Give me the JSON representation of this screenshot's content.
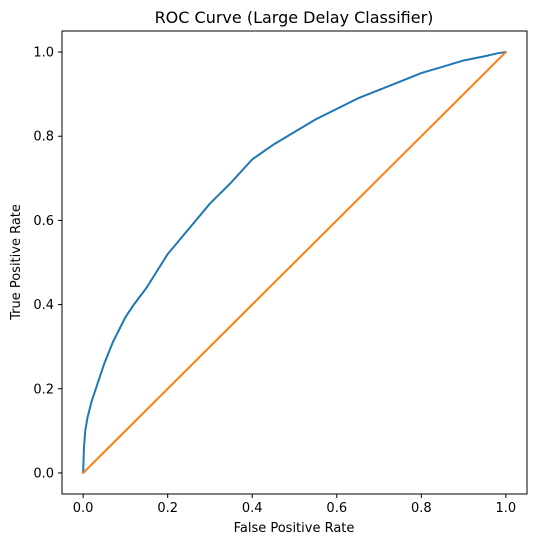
{
  "chart_data": {
    "type": "line",
    "title": "ROC Curve (Large Delay Classifier)",
    "xlabel": "False Positive Rate",
    "ylabel": "True Positive Rate",
    "xlim": [
      -0.05,
      1.05
    ],
    "ylim": [
      -0.05,
      1.05
    ],
    "xticks": [
      "0.0",
      "0.2",
      "0.4",
      "0.6",
      "0.8",
      "1.0"
    ],
    "yticks": [
      "0.0",
      "0.2",
      "0.4",
      "0.6",
      "0.8",
      "1.0"
    ],
    "grid": false,
    "series": [
      {
        "color": "#1f77b4",
        "x": [
          0.0,
          0.002,
          0.005,
          0.01,
          0.02,
          0.03,
          0.05,
          0.07,
          0.1,
          0.12,
          0.15,
          0.2,
          0.25,
          0.3,
          0.35,
          0.4,
          0.45,
          0.5,
          0.55,
          0.6,
          0.65,
          0.7,
          0.75,
          0.8,
          0.85,
          0.9,
          0.95,
          0.98,
          1.0
        ],
        "y": [
          0.0,
          0.06,
          0.1,
          0.13,
          0.17,
          0.2,
          0.26,
          0.31,
          0.37,
          0.4,
          0.44,
          0.52,
          0.58,
          0.64,
          0.69,
          0.745,
          0.78,
          0.81,
          0.84,
          0.865,
          0.89,
          0.91,
          0.93,
          0.95,
          0.965,
          0.98,
          0.99,
          0.997,
          1.0
        ]
      },
      {
        "color": "#ff7f0e",
        "x": [
          0.0,
          1.0
        ],
        "y": [
          0.0,
          1.0
        ]
      }
    ]
  }
}
